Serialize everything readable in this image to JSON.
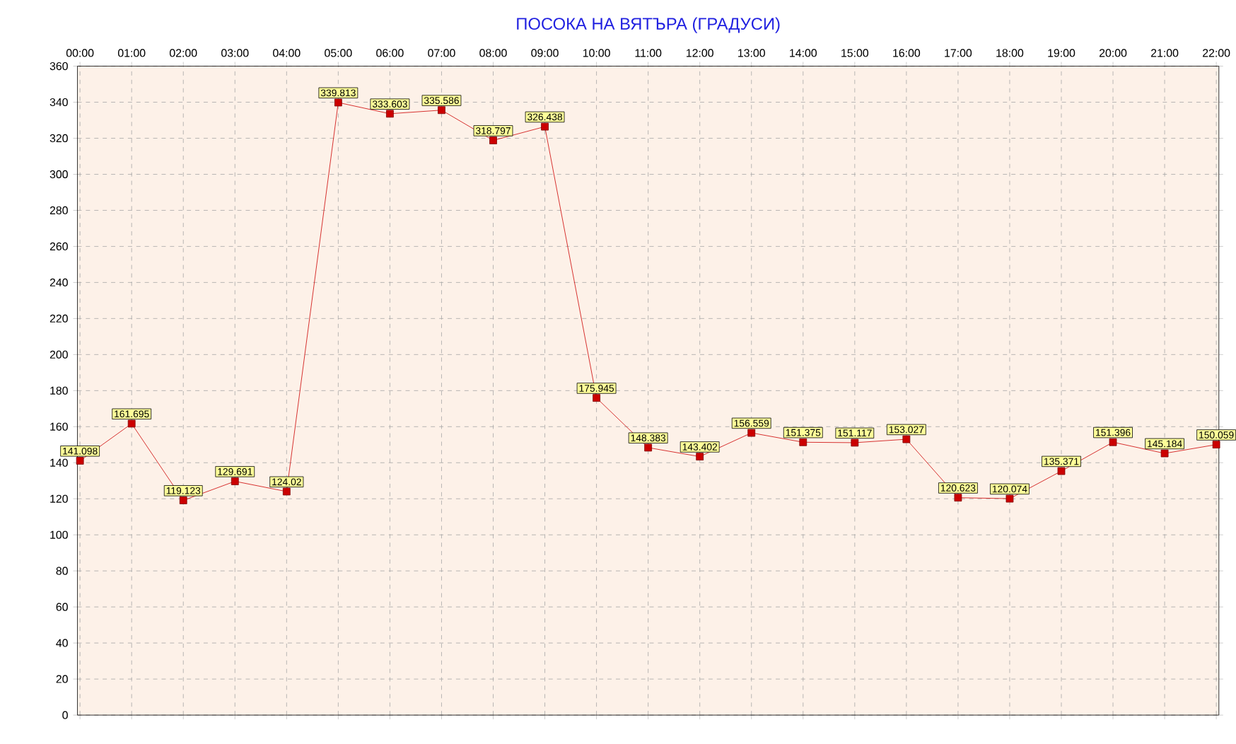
{
  "chart_data": {
    "type": "line",
    "title": "ПОСОКА НА ВЯТЪРА    (ГРАДУСИ)",
    "categories": [
      "00:00",
      "01:00",
      "02:00",
      "03:00",
      "04:00",
      "05:00",
      "06:00",
      "07:00",
      "08:00",
      "09:00",
      "10:00",
      "11:00",
      "12:00",
      "13:00",
      "14:00",
      "15:00",
      "16:00",
      "17:00",
      "18:00",
      "19:00",
      "20:00",
      "21:00",
      "22:00"
    ],
    "series": [
      {
        "color": "#cc0000",
        "values": [
          141.098,
          161.695,
          119.123,
          129.691,
          124.02,
          339.813,
          333.603,
          335.586,
          318.797,
          326.438,
          175.945,
          148.383,
          143.402,
          156.559,
          151.375,
          151.117,
          153.027,
          120.623,
          120.074,
          135.371,
          151.396,
          145.184,
          150.059
        ]
      }
    ],
    "ylim": [
      0,
      360
    ],
    "yticks": [
      0,
      20,
      40,
      60,
      80,
      100,
      120,
      140,
      160,
      180,
      200,
      220,
      240,
      260,
      280,
      300,
      320,
      340,
      360
    ],
    "grid": true,
    "marker": "square",
    "line_style": "solid",
    "data_labels": true
  }
}
